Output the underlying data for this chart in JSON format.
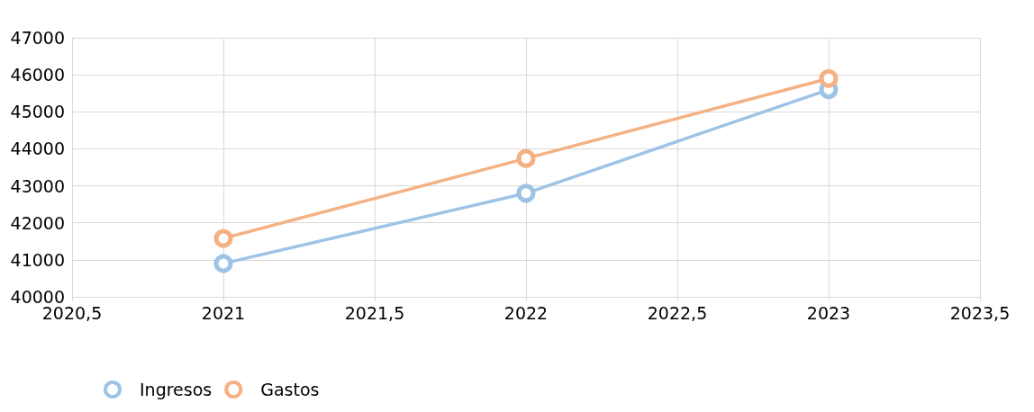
{
  "chart_data": {
    "type": "line",
    "x": [
      2021,
      2022,
      2023
    ],
    "series": [
      {
        "name": "Ingresos",
        "color": "#9dc3e6",
        "values": [
          40900,
          42800,
          45600
        ]
      },
      {
        "name": "Gastos",
        "color": "#f4b183",
        "values": [
          41580,
          43740,
          45900
        ]
      }
    ],
    "xlim": [
      2020.5,
      2023.5
    ],
    "xticks": [
      {
        "value": 2020.5,
        "label": "2020,5"
      },
      2021,
      {
        "value": 2021.5,
        "label": "2021,5"
      },
      2022,
      {
        "value": 2022.5,
        "label": "2022,5"
      },
      2023,
      {
        "value": 2023.5,
        "label": "2023,5"
      }
    ],
    "ylim": [
      40000,
      47000
    ],
    "yticks": [
      40000,
      41000,
      42000,
      43000,
      44000,
      45000,
      46000,
      47000
    ],
    "grid": true,
    "legend": "bottom left",
    "marker": "circle",
    "line_style": "solid"
  }
}
